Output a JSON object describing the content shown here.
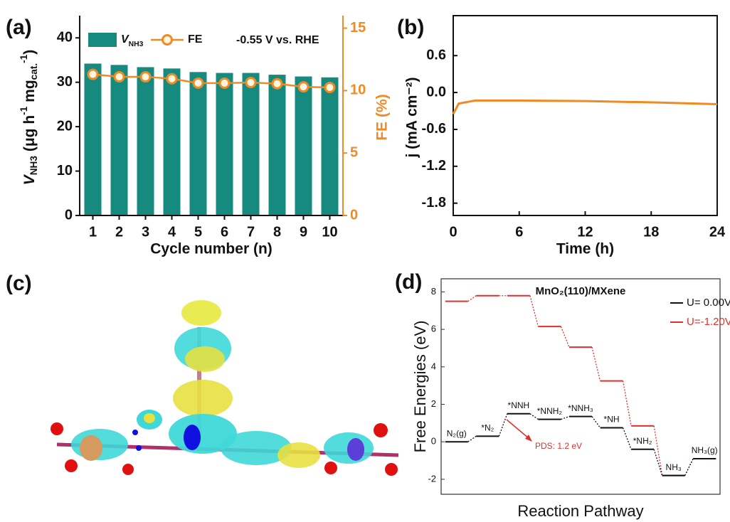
{
  "chart_data": [
    {
      "type": "bar_line",
      "panel_label": "(a)",
      "categories": [
        1,
        2,
        3,
        4,
        5,
        6,
        7,
        8,
        9,
        10
      ],
      "xlabel": "Cycle number (n)",
      "ylabel": [
        "V",
        "NH3",
        " (μg h",
        "-1",
        " mg",
        "cat.",
        "-1",
        ")"
      ],
      "y2label": "FE (%)",
      "annotation": "-0.55 V vs. RHE",
      "ylim": [
        0,
        45
      ],
      "yticks": [
        0,
        10,
        20,
        30,
        40
      ],
      "y2lim": [
        0,
        16
      ],
      "y2ticks": [
        0,
        5,
        10,
        15
      ],
      "series": [
        {
          "name": [
            "V",
            "NH3"
          ],
          "color": "#178a80",
          "values": [
            34.2,
            33.9,
            33.4,
            33.1,
            32.3,
            32.1,
            32.1,
            31.7,
            31.3,
            31.1
          ]
        },
        {
          "name": "FE",
          "color": "#f08a24",
          "axis": "y2",
          "values": [
            11.3,
            11.1,
            11.1,
            10.95,
            10.6,
            10.6,
            10.65,
            10.55,
            10.3,
            10.25
          ]
        }
      ]
    },
    {
      "type": "line",
      "panel_label": "(b)",
      "x": [
        0,
        0.5,
        2,
        6,
        12,
        18,
        24
      ],
      "xlim": [
        0,
        24
      ],
      "xticks": [
        0,
        6,
        12,
        18,
        24
      ],
      "ylim": [
        -2.0,
        1.25
      ],
      "yticks": [
        0.6,
        {
          "value": 0,
          "label": "0.0"
        },
        -0.6,
        -1.2,
        -1.8
      ],
      "xlabel": "Time (h)",
      "ylabel": "j (mA cm⁻²)",
      "series": [
        {
          "color": "#f08a24",
          "values": [
            -0.35,
            -0.18,
            -0.13,
            -0.13,
            -0.14,
            -0.16,
            -0.19
          ]
        }
      ]
    },
    {
      "type": "energy",
      "panel_label": "(d)",
      "title": "MnO₂(110)/MXene",
      "categories": [
        "N₂(g)",
        "*N₂",
        "*NNH",
        "*NNH₂",
        "*NNH₃",
        "*NH",
        "*NH₂",
        "NH₃",
        "NH₃(g)"
      ],
      "ylim": [
        -2.8,
        8.7
      ],
      "yticks": [
        -2,
        0,
        2,
        4,
        6,
        8
      ],
      "xlabel": "Reaction Pathway",
      "ylabel": "Free Energies (eV)",
      "annotation": "PDS: 1.2 eV",
      "series": [
        {
          "name": "U= 0.00V",
          "color": "#111111",
          "values": [
            0,
            0.3,
            1.5,
            1.2,
            1.35,
            0.75,
            -0.4,
            -1.8,
            -0.9
          ]
        },
        {
          "name": "U=-1.20V",
          "color": "#e03030",
          "values": [
            7.5,
            7.8,
            7.8,
            6.15,
            5.05,
            3.25,
            0.85,
            -1.8,
            -0.9
          ]
        }
      ]
    }
  ],
  "image_panel": {
    "label": "(c)"
  }
}
